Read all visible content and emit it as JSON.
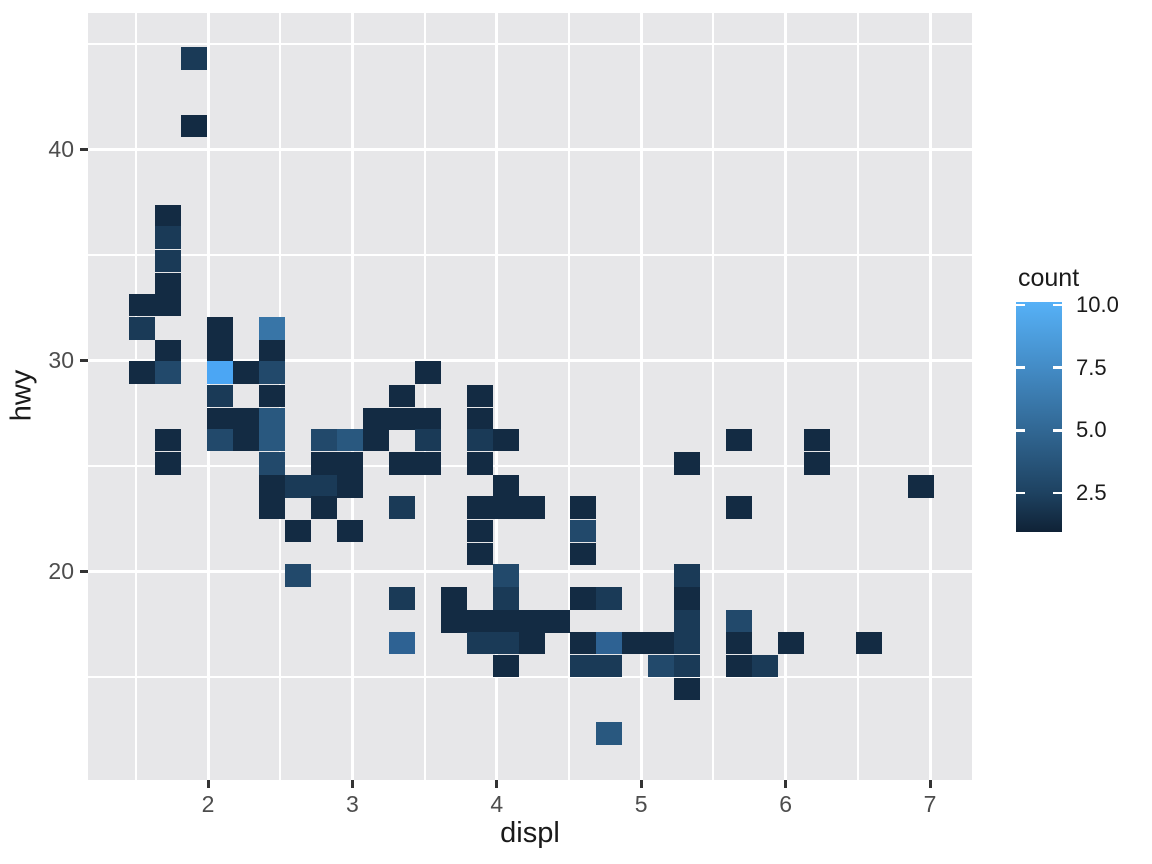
{
  "figure": {
    "background": "#ffffff",
    "panel_background": "#e7e7e9",
    "gridline_color": "#ffffff"
  },
  "chart_data": {
    "type": "heatmap",
    "subtype": "geom_bin2d",
    "title": "",
    "xlabel": "displ",
    "ylabel": "hwy",
    "x_ticks": [
      2,
      3,
      4,
      5,
      6,
      7
    ],
    "x_tick_labels": [
      "2",
      "3",
      "4",
      "5",
      "6",
      "7"
    ],
    "x_minor_gridlines": [
      1.5,
      2.5,
      3.5,
      4.5,
      5.5,
      6.5
    ],
    "y_ticks": [
      20,
      30,
      40
    ],
    "y_tick_labels": [
      "20",
      "30",
      "40"
    ],
    "y_minor_gridlines": [
      15,
      25,
      35,
      45
    ],
    "xlim": [
      1.33,
      7.27
    ],
    "ylim": [
      10.3,
      45.7
    ],
    "grid": "on",
    "bin_width_displ": 0.18,
    "bin_height_hwy": 1.07,
    "legend": {
      "title": "count",
      "position": "right",
      "limits": [
        1,
        10
      ],
      "tick_values": [
        10.0,
        7.5,
        5.0,
        2.5
      ],
      "tick_labels": [
        "10.0",
        "7.5",
        "5.0",
        "2.5"
      ],
      "gradient_low": "#132B43",
      "gradient_high": "#56B1F7",
      "gradient_stops": [
        {
          "color": "#0F2236",
          "pos": 0
        },
        {
          "color": "#1E4261",
          "pos": 17
        },
        {
          "color": "#316793",
          "pos": 44
        },
        {
          "color": "#438BC5",
          "pos": 71
        },
        {
          "color": "#56B1F7",
          "pos": 100
        }
      ]
    },
    "color_by_count": {
      "1": "#132B43",
      "2": "#1A3A57",
      "3": "#22496B",
      "4": "#29587F",
      "5": "#2E6293",
      "6": "#3875A7",
      "7": "#4084BB",
      "8": "#4793CF",
      "9": "#4FA2E3",
      "10": "#4BA6F4"
    },
    "tiles": [
      [
        1.54,
        32.6,
        1
      ],
      [
        1.54,
        31.5,
        2
      ],
      [
        1.54,
        29.4,
        1
      ],
      [
        1.72,
        36.8,
        1
      ],
      [
        1.72,
        35.8,
        2
      ],
      [
        1.72,
        34.7,
        2
      ],
      [
        1.72,
        33.6,
        1
      ],
      [
        1.72,
        32.6,
        1
      ],
      [
        1.72,
        30.4,
        1
      ],
      [
        1.72,
        29.4,
        3
      ],
      [
        1.72,
        26.2,
        1
      ],
      [
        1.72,
        25.1,
        1
      ],
      [
        1.9,
        44.3,
        2
      ],
      [
        1.9,
        41.1,
        1
      ],
      [
        2.08,
        31.5,
        1
      ],
      [
        2.08,
        30.4,
        1
      ],
      [
        2.08,
        29.4,
        10
      ],
      [
        2.08,
        28.3,
        2
      ],
      [
        2.08,
        27.2,
        1
      ],
      [
        2.08,
        26.2,
        3
      ],
      [
        2.26,
        29.4,
        1
      ],
      [
        2.26,
        27.2,
        1
      ],
      [
        2.26,
        26.2,
        1
      ],
      [
        2.44,
        31.5,
        6
      ],
      [
        2.44,
        30.4,
        1
      ],
      [
        2.44,
        29.4,
        3
      ],
      [
        2.44,
        28.3,
        1
      ],
      [
        2.44,
        27.2,
        4
      ],
      [
        2.44,
        26.2,
        4
      ],
      [
        2.44,
        25.1,
        3
      ],
      [
        2.44,
        24.0,
        1
      ],
      [
        2.44,
        23.0,
        1
      ],
      [
        2.62,
        24.0,
        2
      ],
      [
        2.62,
        21.9,
        1
      ],
      [
        2.62,
        19.8,
        3
      ],
      [
        2.8,
        26.2,
        3
      ],
      [
        2.8,
        25.1,
        1
      ],
      [
        2.8,
        24.0,
        2
      ],
      [
        2.8,
        23.0,
        1
      ],
      [
        2.98,
        26.2,
        4
      ],
      [
        2.98,
        25.1,
        1
      ],
      [
        2.98,
        24.0,
        1
      ],
      [
        2.98,
        21.9,
        1
      ],
      [
        3.16,
        27.2,
        1
      ],
      [
        3.16,
        26.2,
        1
      ],
      [
        3.34,
        28.3,
        1
      ],
      [
        3.34,
        27.2,
        1
      ],
      [
        3.34,
        25.1,
        1
      ],
      [
        3.34,
        23.0,
        2
      ],
      [
        3.34,
        18.7,
        2
      ],
      [
        3.34,
        16.6,
        5
      ],
      [
        3.52,
        29.4,
        1
      ],
      [
        3.52,
        27.2,
        1
      ],
      [
        3.52,
        26.2,
        2
      ],
      [
        3.52,
        25.1,
        1
      ],
      [
        3.7,
        18.7,
        1
      ],
      [
        3.7,
        17.6,
        1
      ],
      [
        3.88,
        28.3,
        1
      ],
      [
        3.88,
        27.2,
        1
      ],
      [
        3.88,
        26.2,
        2
      ],
      [
        3.88,
        25.1,
        1
      ],
      [
        3.88,
        23.0,
        1
      ],
      [
        3.88,
        21.9,
        1
      ],
      [
        3.88,
        20.8,
        1
      ],
      [
        3.88,
        17.6,
        1
      ],
      [
        3.88,
        16.6,
        2
      ],
      [
        4.06,
        26.2,
        1
      ],
      [
        4.06,
        24.0,
        1
      ],
      [
        4.06,
        23.0,
        1
      ],
      [
        4.06,
        19.8,
        3
      ],
      [
        4.06,
        18.7,
        2
      ],
      [
        4.06,
        17.6,
        1
      ],
      [
        4.06,
        16.6,
        2
      ],
      [
        4.06,
        15.5,
        1
      ],
      [
        4.24,
        23.0,
        1
      ],
      [
        4.24,
        17.6,
        1
      ],
      [
        4.24,
        16.6,
        1
      ],
      [
        4.42,
        17.6,
        1
      ],
      [
        4.6,
        23.0,
        1
      ],
      [
        4.6,
        21.9,
        3
      ],
      [
        4.6,
        20.8,
        1
      ],
      [
        4.6,
        18.7,
        1
      ],
      [
        4.6,
        16.6,
        1
      ],
      [
        4.6,
        15.5,
        2
      ],
      [
        4.78,
        18.7,
        2
      ],
      [
        4.78,
        16.6,
        5
      ],
      [
        4.78,
        15.5,
        2
      ],
      [
        4.78,
        12.3,
        4
      ],
      [
        4.96,
        16.6,
        1
      ],
      [
        5.14,
        16.6,
        1
      ],
      [
        5.14,
        15.5,
        3
      ],
      [
        5.32,
        25.1,
        1
      ],
      [
        5.32,
        19.8,
        2
      ],
      [
        5.32,
        18.7,
        1
      ],
      [
        5.32,
        17.6,
        2
      ],
      [
        5.32,
        16.6,
        2
      ],
      [
        5.32,
        15.5,
        2
      ],
      [
        5.32,
        14.4,
        1
      ],
      [
        5.68,
        26.2,
        1
      ],
      [
        5.68,
        23.0,
        1
      ],
      [
        5.68,
        17.6,
        3
      ],
      [
        5.68,
        16.6,
        1
      ],
      [
        5.68,
        15.5,
        1
      ],
      [
        5.86,
        15.5,
        2
      ],
      [
        6.04,
        16.6,
        1
      ],
      [
        6.22,
        26.2,
        1
      ],
      [
        6.22,
        25.1,
        1
      ],
      [
        6.58,
        16.6,
        1
      ],
      [
        6.94,
        24.0,
        1
      ]
    ]
  }
}
